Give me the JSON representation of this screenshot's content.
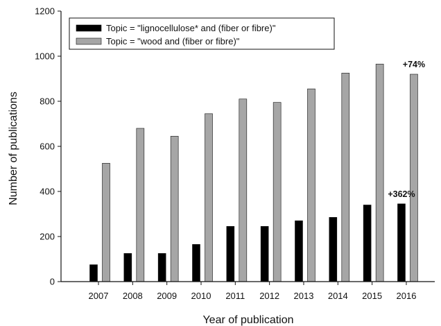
{
  "chart_data": {
    "type": "bar",
    "categories": [
      "2007",
      "2008",
      "2009",
      "2010",
      "2011",
      "2012",
      "2013",
      "2014",
      "2015",
      "2016"
    ],
    "series": [
      {
        "name": "Topic = \"lignocellulose* and (fiber or fibre)\"",
        "color": "#000000",
        "values": [
          75,
          125,
          125,
          165,
          245,
          245,
          270,
          285,
          340,
          345
        ]
      },
      {
        "name": "Topic = \"wood and (fiber or fibre)\"",
        "color": "#a6a6a6",
        "values": [
          525,
          680,
          645,
          745,
          810,
          795,
          855,
          925,
          965,
          920
        ]
      }
    ],
    "xlabel": "Year of publication",
    "ylabel": "Number of publications",
    "ylim": [
      0,
      1200
    ],
    "yticks": [
      0,
      200,
      400,
      600,
      800,
      1000,
      1200
    ],
    "grid": false,
    "legend_position": "top-left",
    "annotations": [
      {
        "text": "+362%",
        "series": 0,
        "category": "2016"
      },
      {
        "text": "+74%",
        "series": 1,
        "category": "2016"
      }
    ]
  }
}
